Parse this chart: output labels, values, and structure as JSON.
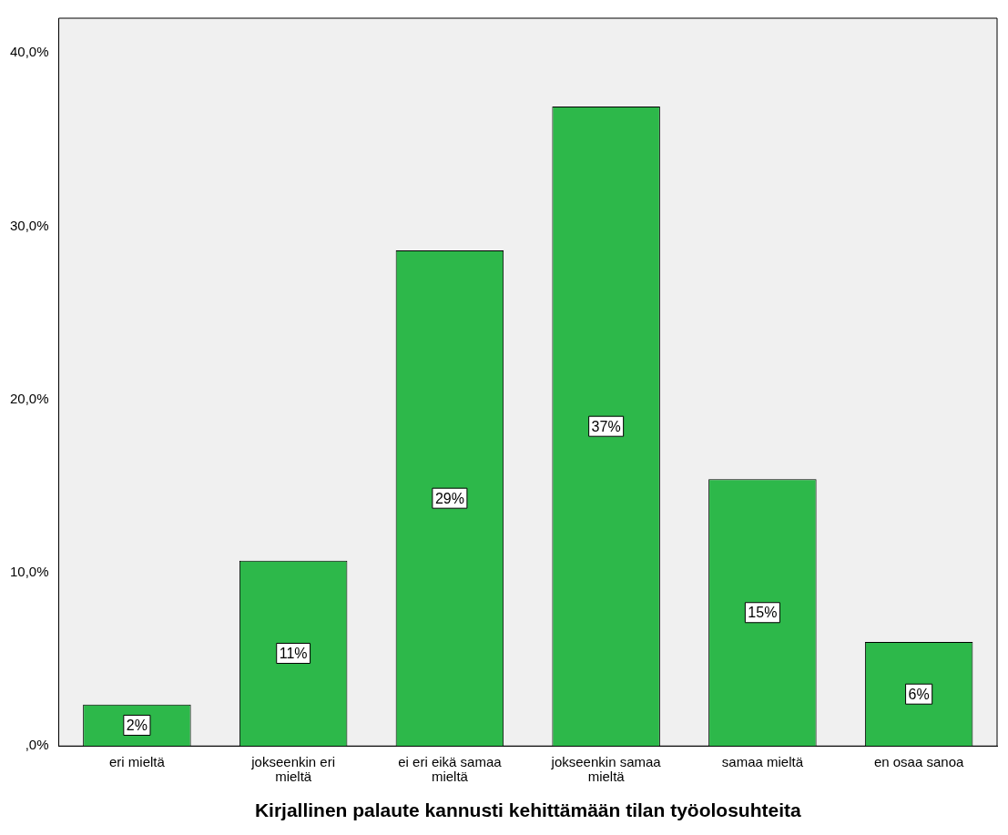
{
  "chart_data": {
    "type": "bar",
    "xlabel": "Kirjallinen palaute kannusti kehittämään tilan työolosuhteita",
    "categories": [
      "eri mieltä",
      "jokseenkin eri mieltä",
      "ei eri eikä samaa mieltä",
      "jokseenkin samaa mieltä",
      "samaa mieltä",
      "en osaa sanoa"
    ],
    "values": [
      2.4,
      10.7,
      28.6,
      36.9,
      15.4,
      6.0
    ],
    "value_labels": [
      "2%",
      "11%",
      "29%",
      "37%",
      "15%",
      "6%"
    ],
    "color": "#2db84a",
    "ylim": [
      0,
      42
    ],
    "yticks": [
      {
        "value": 0,
        "label": ",0%"
      },
      {
        "value": 10,
        "label": "10,0%"
      },
      {
        "value": 20,
        "label": "20,0%"
      },
      {
        "value": 30,
        "label": "30,0%"
      },
      {
        "value": 40,
        "label": "40,0%"
      }
    ],
    "grid": false,
    "legend": false
  }
}
